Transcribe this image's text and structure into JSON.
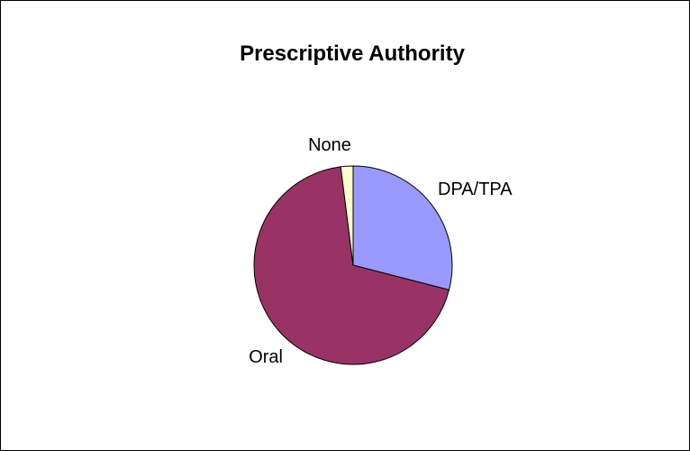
{
  "chart_data": {
    "type": "pie",
    "title": "Prescriptive Authority",
    "slices": [
      {
        "label": "DPA/TPA",
        "value": 29,
        "color": "#9999ff"
      },
      {
        "label": "Oral",
        "value": 69,
        "color": "#993366"
      },
      {
        "label": "None",
        "value": 2,
        "color": "#ffffcc"
      }
    ],
    "start_angle_deg": 0,
    "direction": "clockwise",
    "legend": "none"
  }
}
